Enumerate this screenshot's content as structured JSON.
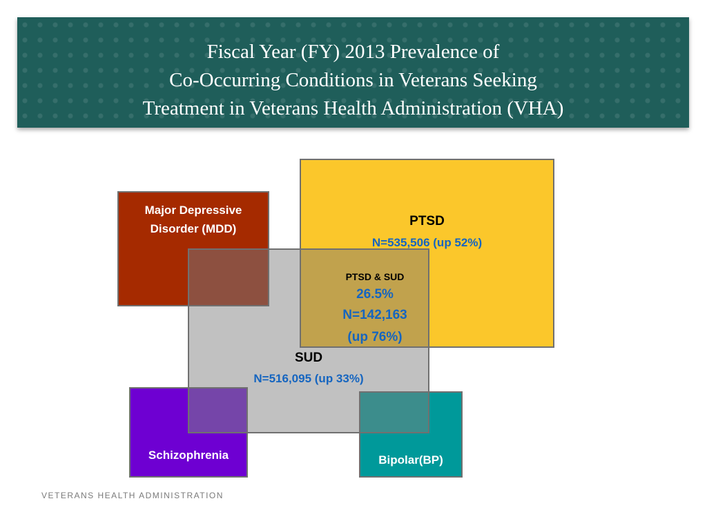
{
  "header": {
    "title_lines": [
      "Fiscal Year (FY) 2013 Prevalence of",
      "Co-Occurring Conditions in Veterans Seeking",
      "Treatment in Veterans Health Administration (VHA)"
    ]
  },
  "diagram": {
    "mdd": {
      "label_line1": "Major Depressive",
      "label_line2": "Disorder (MDD)",
      "color": "#a52a00"
    },
    "ptsd": {
      "label": "PTSD",
      "n": "N=535,506 (up 52%)",
      "color": "#fbc72b"
    },
    "overlap": {
      "label": "PTSD & SUD",
      "percent": "26.5%",
      "n": "N=142,163",
      "change": "(up 76%)",
      "color": "#c1a24d"
    },
    "sud": {
      "label": "SUD",
      "n": "N=516,095 (up 33%)",
      "color": "#c1c1c1"
    },
    "schizophrenia": {
      "label": "Schizophrenia",
      "color": "#6e00d2"
    },
    "bipolar": {
      "label": "Bipolar(BP)",
      "color": "#00999a"
    }
  },
  "footer": {
    "text": "VETERANS HEALTH ADMINISTRATION"
  },
  "colors": {
    "header_bg": "#1f5e5a",
    "value_text": "#1565c0"
  }
}
